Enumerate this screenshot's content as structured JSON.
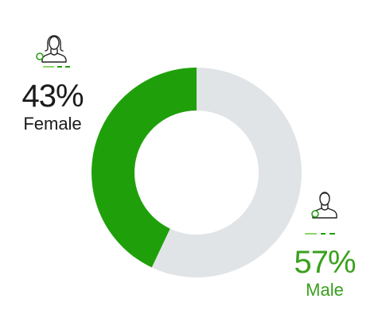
{
  "chart_data": {
    "type": "pie",
    "categories": [
      "Female",
      "Male"
    ],
    "values": [
      43,
      57
    ],
    "value_labels": [
      "43%",
      "57%"
    ],
    "colors": [
      "#1fa00a",
      "#e1e4e6"
    ],
    "donut": true
  },
  "annotations": {
    "female": {
      "icon": "female-person-icon",
      "percent": "43%",
      "label": "Female",
      "color": "#1a1a1a"
    },
    "male": {
      "icon": "male-person-icon",
      "percent": "57%",
      "label": "Male",
      "color": "#3aa01e"
    }
  },
  "colors": {
    "accent": "#1fa00a",
    "track": "#e1e4e6",
    "accent_light": "#8fd36a"
  }
}
